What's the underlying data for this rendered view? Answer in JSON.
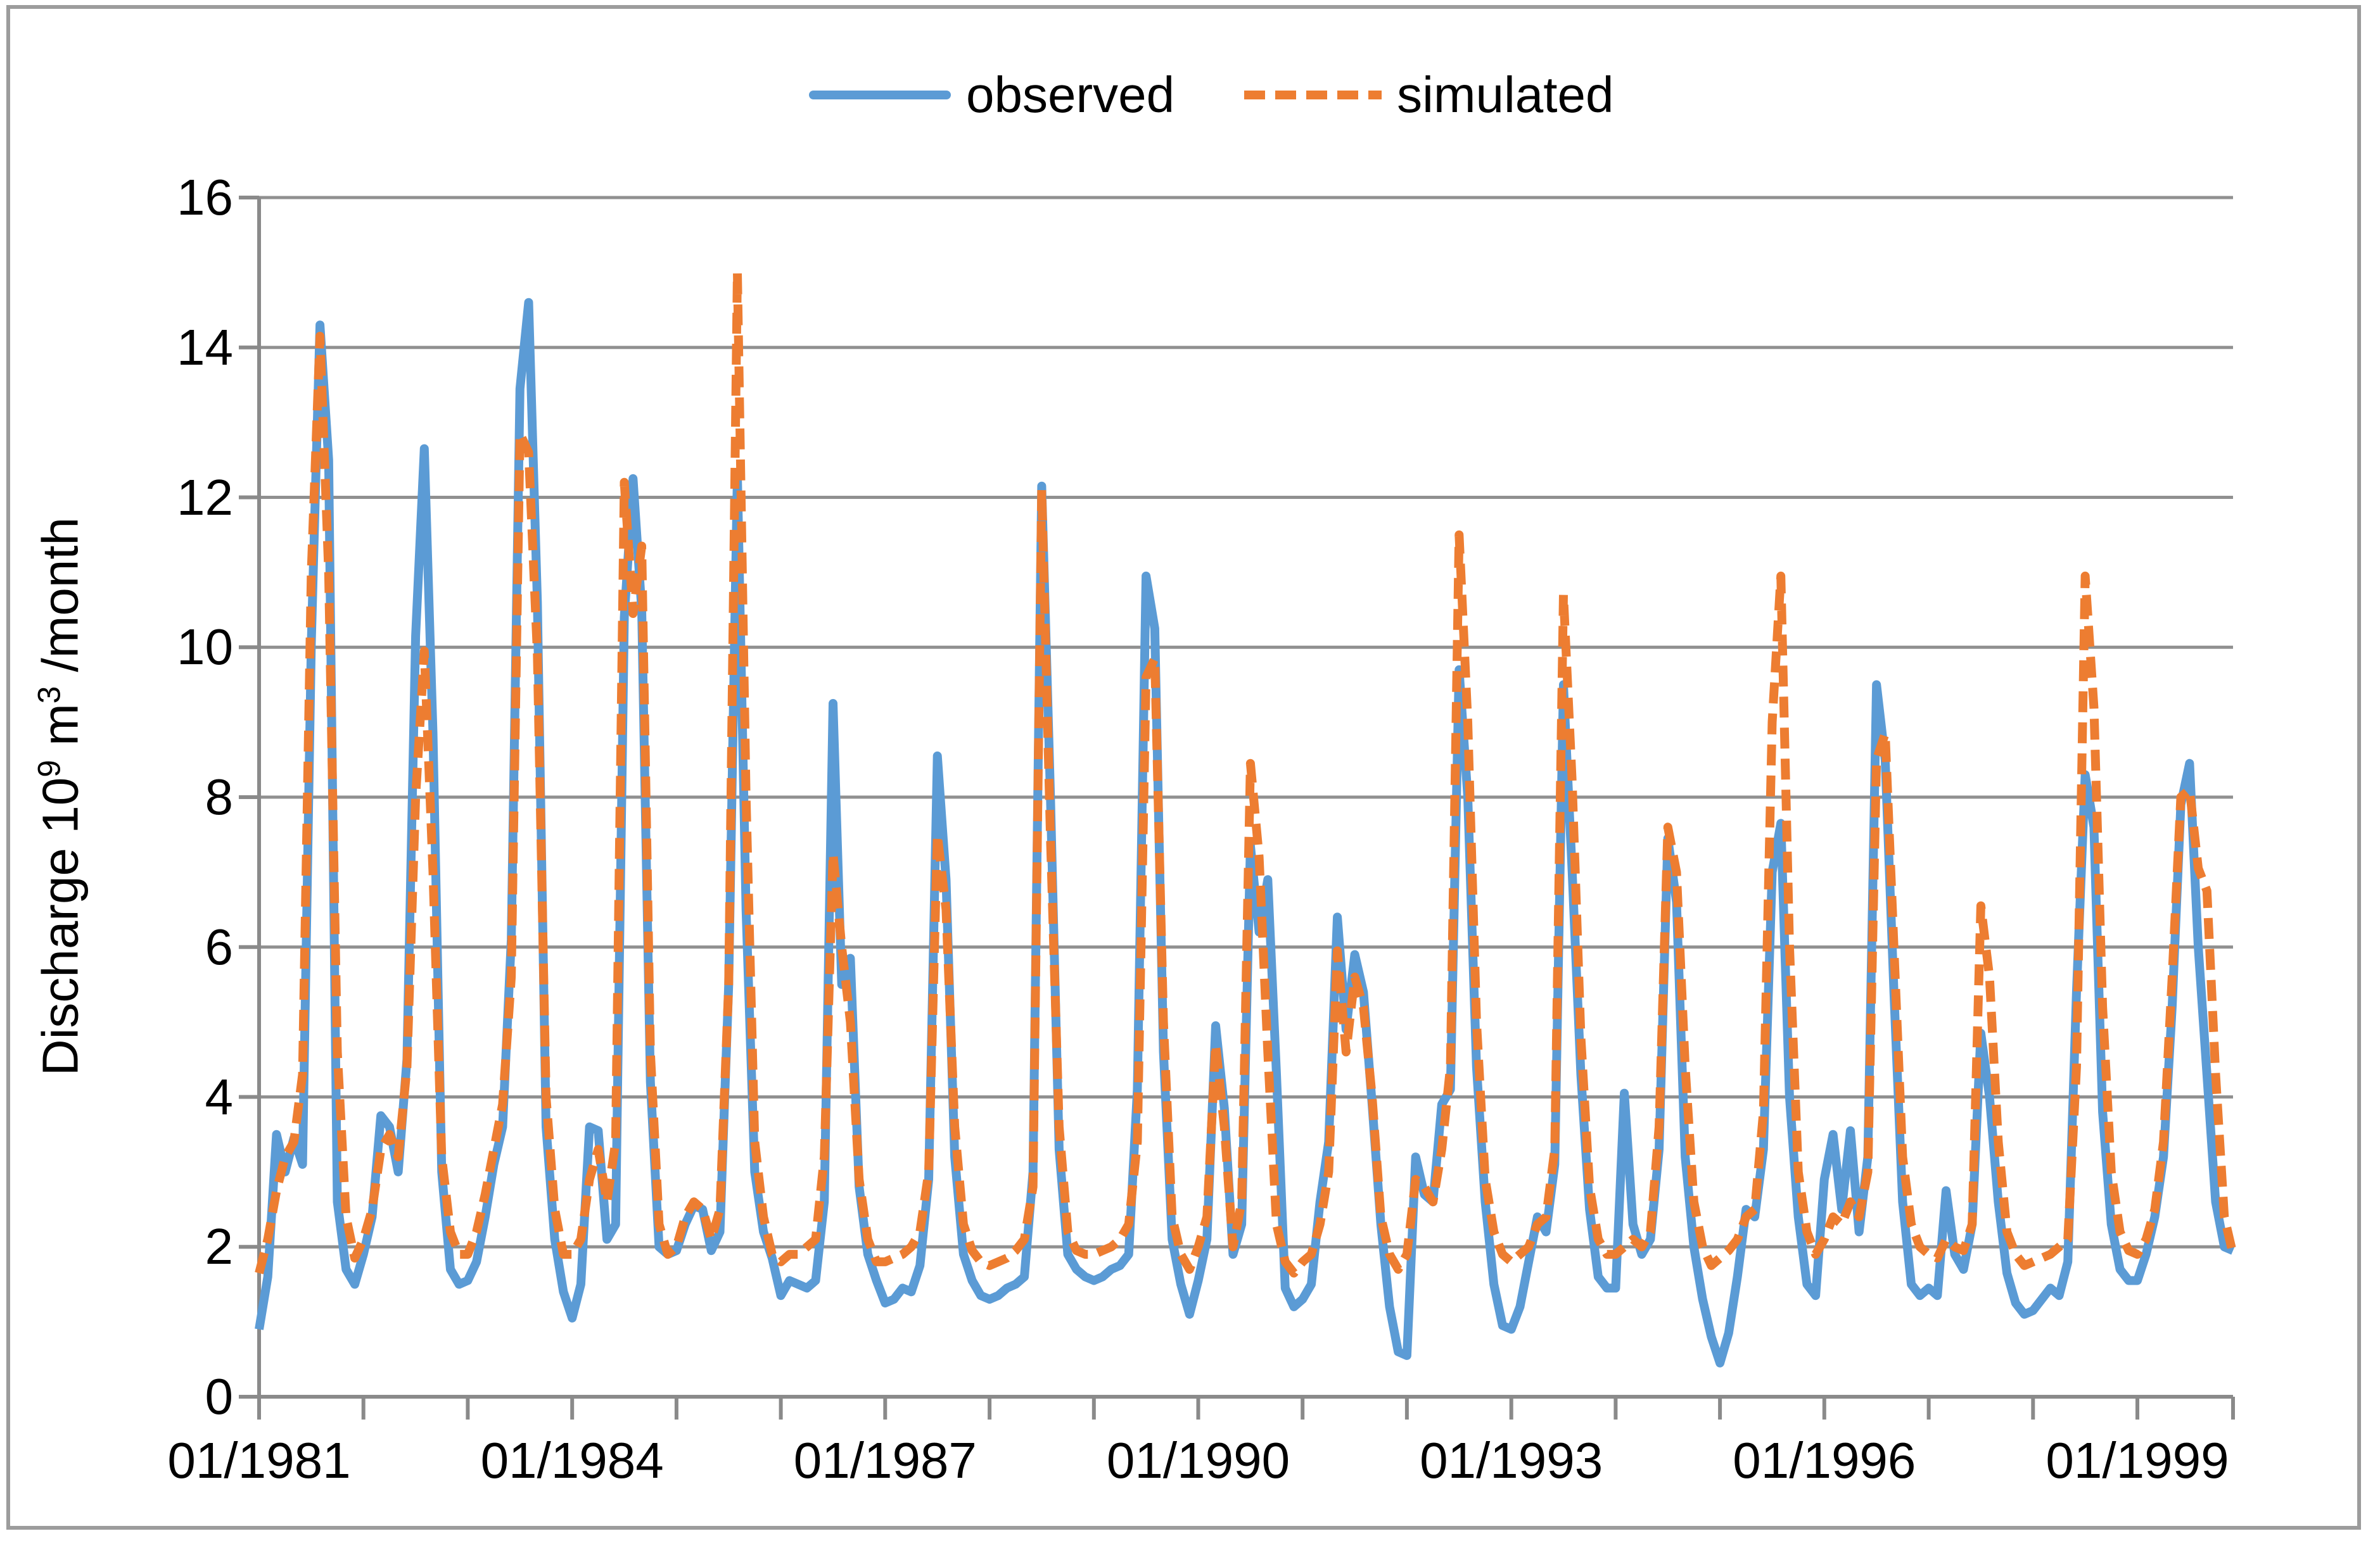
{
  "figure": {
    "background": "#FFFFFF",
    "border_color": "#9C9C9C"
  },
  "legend": {
    "position": "top-center",
    "items": [
      {
        "label": "observed",
        "color": "#5B9BD5",
        "style": "solid"
      },
      {
        "label": "simulated",
        "color": "#ED7D31",
        "style": "dashed"
      }
    ]
  },
  "y_axis": {
    "title": "Discharge 10⁹ m³ /month",
    "title_parts": {
      "prefix": "Discharge 10",
      "sup1": "9",
      "mid": " m",
      "sup2": "3",
      "suffix": " /month"
    },
    "tick_values": [
      0,
      2,
      4,
      6,
      8,
      10,
      12,
      14,
      16
    ]
  },
  "x_axis": {
    "tick_labels": [
      "01/1981",
      "01/1984",
      "01/1987",
      "01/1990",
      "01/1993",
      "01/1996",
      "01/1999"
    ],
    "tick_label_indices": [
      0,
      36,
      72,
      108,
      144,
      180,
      216
    ]
  },
  "chart_data": {
    "type": "line",
    "title": "",
    "xlabel": "",
    "ylabel": "Discharge 10^9 m^3 /month",
    "x_start": "01/1981",
    "x_end": "12/1999",
    "frequency": "monthly",
    "n_points": 228,
    "ylim": [
      0,
      16
    ],
    "y_ticks": [
      0,
      2,
      4,
      6,
      8,
      10,
      12,
      14,
      16
    ],
    "grid": true,
    "grid_color": "#909090",
    "axis_color": "#8A8A8A",
    "legend_position": "top",
    "series": [
      {
        "name": "observed",
        "color": "#5B9BD5",
        "style": "solid",
        "values": [
          0.9,
          1.6,
          3.5,
          3.0,
          3.45,
          3.1,
          10.05,
          14.3,
          12.5,
          2.6,
          1.7,
          1.5,
          1.9,
          2.4,
          3.75,
          3.6,
          3.0,
          4.5,
          10.15,
          12.65,
          8.85,
          3.0,
          1.7,
          1.5,
          1.55,
          1.8,
          2.4,
          3.1,
          3.6,
          6.1,
          13.45,
          14.6,
          10.6,
          3.6,
          2.1,
          1.4,
          1.05,
          1.5,
          3.6,
          3.55,
          2.1,
          2.3,
          10.4,
          12.25,
          10.5,
          4.2,
          2.0,
          1.9,
          1.95,
          2.3,
          2.55,
          2.5,
          1.95,
          2.2,
          5.5,
          12.3,
          6.5,
          3.0,
          2.2,
          1.85,
          1.35,
          1.55,
          1.5,
          1.45,
          1.55,
          2.6,
          9.25,
          5.5,
          5.85,
          2.8,
          1.9,
          1.55,
          1.25,
          1.3,
          1.45,
          1.4,
          1.75,
          2.9,
          8.55,
          6.9,
          3.2,
          1.9,
          1.55,
          1.35,
          1.3,
          1.35,
          1.45,
          1.5,
          1.6,
          3.0,
          12.15,
          8.05,
          3.3,
          1.9,
          1.7,
          1.6,
          1.55,
          1.6,
          1.7,
          1.75,
          1.9,
          4.1,
          10.95,
          10.25,
          4.6,
          2.1,
          1.5,
          1.1,
          1.55,
          2.1,
          4.95,
          3.85,
          1.9,
          2.3,
          7.35,
          6.2,
          6.9,
          4.3,
          1.45,
          1.2,
          1.3,
          1.5,
          2.6,
          3.4,
          6.4,
          4.9,
          5.9,
          5.4,
          3.9,
          2.3,
          1.2,
          0.6,
          0.55,
          3.2,
          2.7,
          2.6,
          3.9,
          4.1,
          9.7,
          8.0,
          4.4,
          2.6,
          1.5,
          0.95,
          0.9,
          1.2,
          1.8,
          2.4,
          2.2,
          3.1,
          9.5,
          7.0,
          4.3,
          2.5,
          1.6,
          1.45,
          1.45,
          4.05,
          2.3,
          1.9,
          2.1,
          3.3,
          7.45,
          6.6,
          3.2,
          2.0,
          1.3,
          0.8,
          0.45,
          0.85,
          1.6,
          2.5,
          2.4,
          3.3,
          7.0,
          7.65,
          4.0,
          2.4,
          1.5,
          1.35,
          2.9,
          3.5,
          2.5,
          3.55,
          2.2,
          3.2,
          9.5,
          8.5,
          5.4,
          2.6,
          1.5,
          1.35,
          1.45,
          1.35,
          2.75,
          1.9,
          1.7,
          2.3,
          4.85,
          4.0,
          2.6,
          1.65,
          1.25,
          1.1,
          1.15,
          1.3,
          1.45,
          1.35,
          1.8,
          5.4,
          8.3,
          7.6,
          3.8,
          2.3,
          1.7,
          1.55,
          1.55,
          1.9,
          2.4,
          3.2,
          5.2,
          7.9,
          8.45,
          6.0,
          4.3,
          2.6,
          2.0,
          1.95
        ]
      },
      {
        "name": "simulated",
        "color": "#ED7D31",
        "style": "dashed",
        "values": [
          1.65,
          2.1,
          2.75,
          3.2,
          3.4,
          4.3,
          11.0,
          14.15,
          11.0,
          4.6,
          2.4,
          1.85,
          2.1,
          2.5,
          3.3,
          3.5,
          3.2,
          4.4,
          8.0,
          9.95,
          7.0,
          3.2,
          2.2,
          1.9,
          1.9,
          2.2,
          2.7,
          3.3,
          3.9,
          5.6,
          12.85,
          12.6,
          9.9,
          4.0,
          2.5,
          1.9,
          1.9,
          2.1,
          2.9,
          3.3,
          2.6,
          3.4,
          12.2,
          10.45,
          11.35,
          4.6,
          2.3,
          1.9,
          2.0,
          2.4,
          2.6,
          2.5,
          2.1,
          2.5,
          5.5,
          15.0,
          8.0,
          3.4,
          2.4,
          1.9,
          1.8,
          1.9,
          1.9,
          2.0,
          2.1,
          3.2,
          7.25,
          6.0,
          5.0,
          2.9,
          2.1,
          1.8,
          1.8,
          1.85,
          1.9,
          2.0,
          2.2,
          3.0,
          7.5,
          6.5,
          3.6,
          2.3,
          1.95,
          1.8,
          1.75,
          1.8,
          1.85,
          1.95,
          2.1,
          2.8,
          12.1,
          7.5,
          3.6,
          2.2,
          1.95,
          1.9,
          1.9,
          1.95,
          2.0,
          2.1,
          2.3,
          3.4,
          9.6,
          9.85,
          5.0,
          2.4,
          1.9,
          1.7,
          2.0,
          2.4,
          4.7,
          3.6,
          2.0,
          2.6,
          8.45,
          7.2,
          4.6,
          2.3,
          1.8,
          1.65,
          1.8,
          1.9,
          2.3,
          3.0,
          5.95,
          4.6,
          5.6,
          5.2,
          4.0,
          2.4,
          1.9,
          1.7,
          1.9,
          2.9,
          2.8,
          2.6,
          3.3,
          4.4,
          11.5,
          9.0,
          5.0,
          2.9,
          2.2,
          1.9,
          1.8,
          1.9,
          2.0,
          2.3,
          2.4,
          3.3,
          10.7,
          8.2,
          4.8,
          2.8,
          2.1,
          1.9,
          1.9,
          2.0,
          2.1,
          2.0,
          2.2,
          3.6,
          7.6,
          7.0,
          4.4,
          2.6,
          2.0,
          1.75,
          1.85,
          1.95,
          2.1,
          2.4,
          2.5,
          3.8,
          9.0,
          10.95,
          6.0,
          3.0,
          2.2,
          1.9,
          2.1,
          2.4,
          2.3,
          2.6,
          2.4,
          3.0,
          8.5,
          8.85,
          6.0,
          3.2,
          2.3,
          2.0,
          1.9,
          1.85,
          2.1,
          2.0,
          1.95,
          2.3,
          6.55,
          5.6,
          3.4,
          2.2,
          1.9,
          1.75,
          1.8,
          1.85,
          1.9,
          2.0,
          2.1,
          4.4,
          10.95,
          9.2,
          5.2,
          3.0,
          2.2,
          1.95,
          1.9,
          2.1,
          2.5,
          3.4,
          5.6,
          8.0,
          8.1,
          7.05,
          6.75,
          4.3,
          2.4,
          1.9
        ]
      }
    ]
  }
}
